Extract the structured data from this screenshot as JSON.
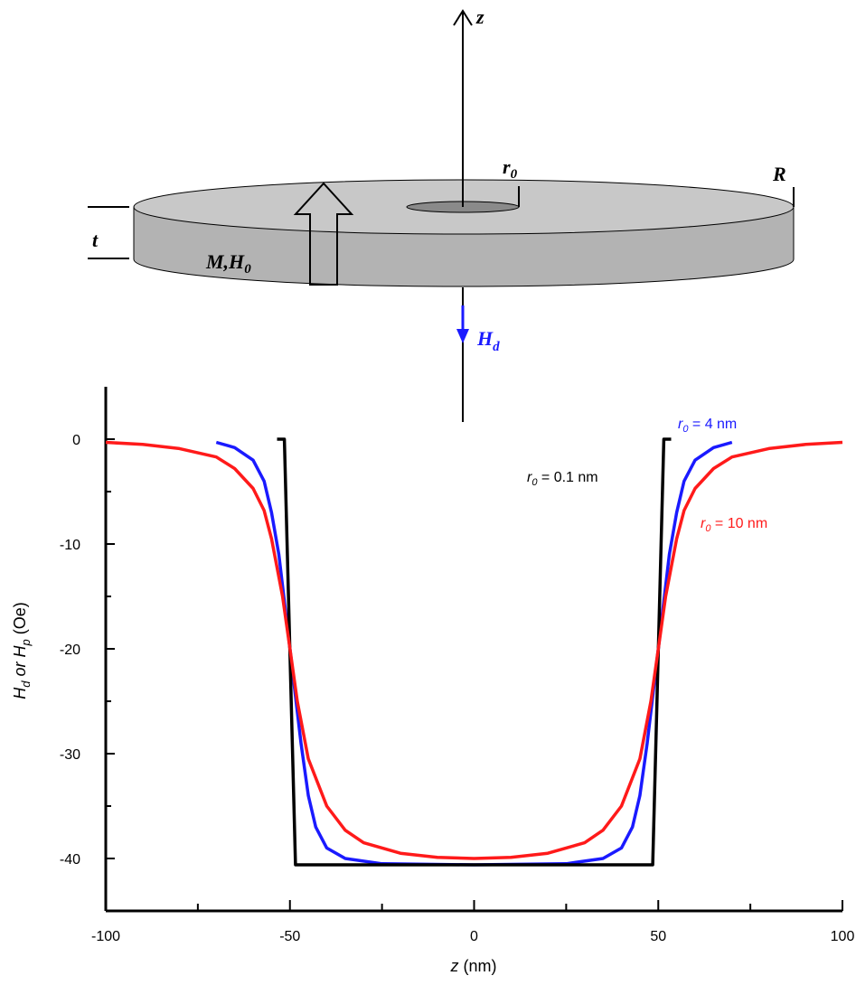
{
  "diagram": {
    "z_axis": "z",
    "r0": [
      "r",
      "0"
    ],
    "R": "R",
    "t": "t",
    "M_H0": [
      "M,H",
      "0"
    ],
    "Hd": [
      "H",
      "d"
    ]
  },
  "chart_data": {
    "type": "line",
    "xlabel": [
      "z",
      " (nm)"
    ],
    "ylabel": [
      "H",
      "d",
      " or ",
      "H",
      "p",
      " (Oe)"
    ],
    "xlim": [
      -100,
      100
    ],
    "ylim": [
      -45,
      5
    ],
    "xticks": [
      -100,
      -50,
      0,
      50,
      100
    ],
    "xminorticks": [
      -75,
      -25,
      25,
      75
    ],
    "yticks": [
      0,
      -10,
      -20,
      -30,
      -40
    ],
    "yminorticks": [
      -5,
      -15,
      -25,
      -35
    ],
    "series": [
      {
        "name": [
          "r",
          "0",
          " = 4 nm"
        ],
        "color": "#1a1aff",
        "x": [
          -70,
          -65,
          -60,
          -57,
          -55,
          -53,
          -51,
          -50,
          -49,
          -47,
          -45,
          -43,
          -40,
          -35,
          -25,
          0,
          25,
          35,
          40,
          43,
          45,
          47,
          49,
          50,
          51,
          53,
          55,
          57,
          60,
          65,
          70
        ],
        "values": [
          -0.3,
          -0.8,
          -2,
          -4,
          -7,
          -11,
          -17,
          -20,
          -23,
          -29,
          -34,
          -37,
          -39,
          -40,
          -40.5,
          -40.6,
          -40.5,
          -40,
          -39,
          -37,
          -34,
          -29,
          -23,
          -20,
          -17,
          -11,
          -7,
          -4,
          -2,
          -0.8,
          -0.3
        ]
      },
      {
        "name": [
          "r",
          "0",
          " = 0.1 nm"
        ],
        "color": "#000000",
        "x": [
          -53.5,
          -51.5,
          -48.5,
          48.5,
          51.5,
          53.5
        ],
        "values": [
          0,
          0,
          -40.6,
          -40.6,
          0,
          0
        ]
      },
      {
        "name": [
          "r",
          "0",
          " = 10 nm"
        ],
        "color": "#ff1a1a",
        "x": [
          -100,
          -90,
          -80,
          -70,
          -65,
          -60,
          -57,
          -55,
          -52,
          -50,
          -48,
          -45,
          -40,
          -35,
          -30,
          -20,
          -10,
          0,
          10,
          20,
          30,
          35,
          40,
          45,
          48,
          50,
          52,
          55,
          57,
          60,
          65,
          70,
          80,
          90,
          100
        ],
        "values": [
          -0.3,
          -0.5,
          -0.9,
          -1.7,
          -2.8,
          -4.7,
          -6.8,
          -9.5,
          -15,
          -20,
          -25,
          -30.5,
          -35,
          -37.3,
          -38.5,
          -39.5,
          -39.9,
          -40,
          -39.9,
          -39.5,
          -38.5,
          -37.3,
          -35,
          -30.5,
          -25,
          -20,
          -15,
          -9.5,
          -6.8,
          -4.7,
          -2.8,
          -1.7,
          -0.9,
          -0.5,
          -0.3
        ]
      }
    ]
  }
}
